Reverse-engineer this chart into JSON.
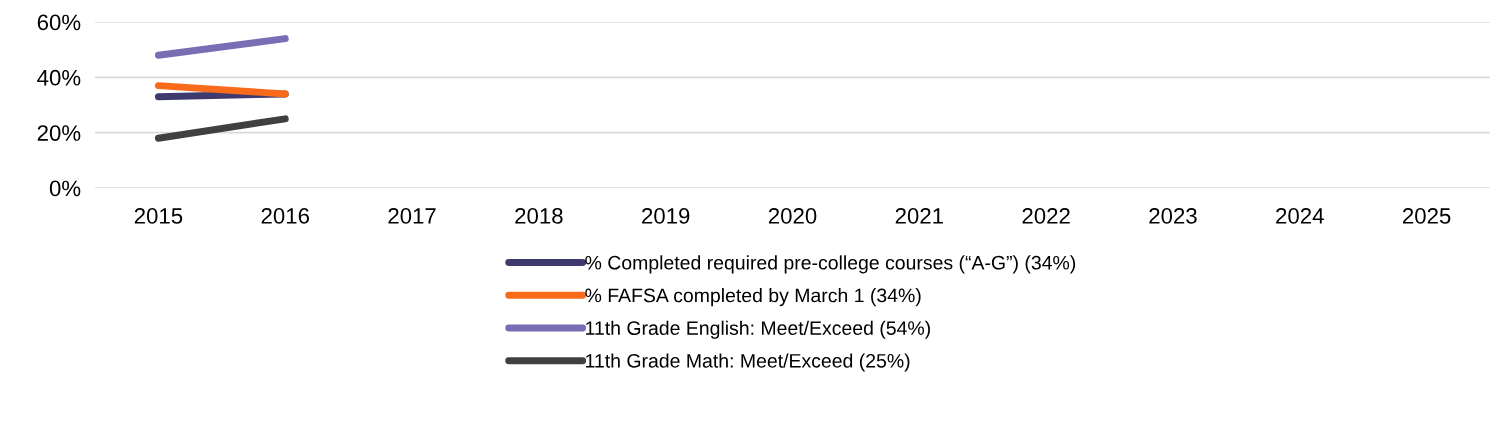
{
  "chart_data": {
    "type": "line",
    "categories": [
      "2015",
      "2016",
      "2017",
      "2018",
      "2019",
      "2020",
      "2021",
      "2022",
      "2023",
      "2024",
      "2025"
    ],
    "series": [
      {
        "name": "% Completed required pre-college courses (“A-G”) (34%)",
        "color": "#3f3a6e",
        "values": [
          33,
          34,
          null,
          null,
          null,
          null,
          null,
          null,
          null,
          null,
          null
        ]
      },
      {
        "name": "% FAFSA completed by March 1 (34%)",
        "color": "#f96b1b",
        "values": [
          37,
          34,
          null,
          null,
          null,
          null,
          null,
          null,
          null,
          null,
          null
        ]
      },
      {
        "name": "11th Grade English: Meet/Exceed (54%)",
        "color": "#7a6db3",
        "values": [
          48,
          54,
          null,
          null,
          null,
          null,
          null,
          null,
          null,
          null,
          null
        ]
      },
      {
        "name": "11th Grade Math: Meet/Exceed (25%)",
        "color": "#404040",
        "values": [
          18,
          25,
          null,
          null,
          null,
          null,
          null,
          null,
          null,
          null,
          null
        ]
      }
    ],
    "ylim": [
      0,
      60
    ],
    "yticks": [
      {
        "value": 0,
        "label": "0%"
      },
      {
        "value": 20,
        "label": "20%"
      },
      {
        "value": 40,
        "label": "40%"
      },
      {
        "value": 60,
        "label": "60%"
      }
    ],
    "grid": "y",
    "legend": "bottom",
    "marker": "none",
    "line_style": "solid"
  }
}
